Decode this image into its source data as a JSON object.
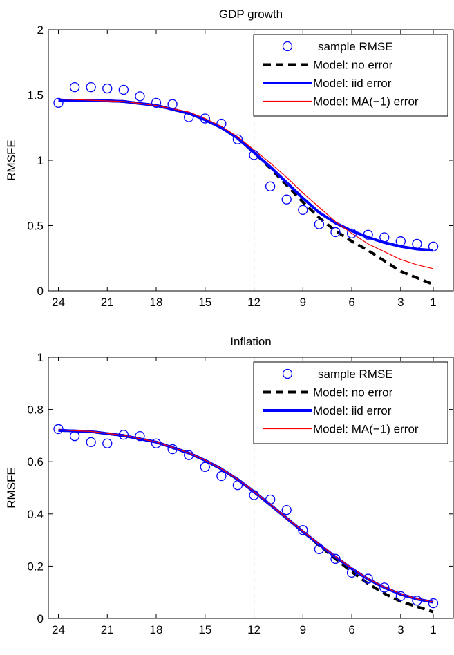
{
  "chart_data": [
    {
      "type": "line",
      "title": "GDP growth",
      "xlabel": "",
      "ylabel": "RMSFE",
      "xlim": [
        24,
        1
      ],
      "ylim": [
        0,
        2
      ],
      "x_reversed": true,
      "x_ticks": [
        24,
        21,
        18,
        15,
        12,
        9,
        6,
        3,
        1
      ],
      "y_ticks": [
        0,
        0.5,
        1,
        1.5,
        2
      ],
      "y_tick_labels": [
        "0",
        "0.5",
        "1",
        "1.5",
        "2"
      ],
      "vline_x": 12,
      "legend_position": "top-right",
      "series": [
        {
          "name": "sample RMSE",
          "kind": "markers",
          "color": "#0000ff",
          "x": [
            24,
            23,
            22,
            21,
            20,
            19,
            18,
            17,
            16,
            15,
            14,
            13,
            12,
            11,
            10,
            9,
            8,
            7,
            6,
            5,
            4,
            3,
            2,
            1
          ],
          "values": [
            1.44,
            1.56,
            1.56,
            1.55,
            1.54,
            1.49,
            1.44,
            1.43,
            1.33,
            1.32,
            1.28,
            1.16,
            1.04,
            0.8,
            0.7,
            0.62,
            0.51,
            0.45,
            0.44,
            0.43,
            0.41,
            0.38,
            0.36,
            0.34
          ]
        },
        {
          "name": "Model: no error",
          "kind": "dashed",
          "color": "#000000",
          "x": [
            24,
            22,
            20,
            18,
            16,
            15,
            14,
            13,
            12,
            11,
            10,
            9,
            8,
            7,
            6,
            5,
            4,
            3,
            2,
            1
          ],
          "values": [
            1.46,
            1.46,
            1.45,
            1.42,
            1.36,
            1.31,
            1.25,
            1.17,
            1.06,
            0.94,
            0.81,
            0.68,
            0.56,
            0.46,
            0.38,
            0.31,
            0.23,
            0.15,
            0.1,
            0.05
          ]
        },
        {
          "name": "Model: iid error",
          "kind": "thick",
          "color": "#0000ff",
          "x": [
            24,
            22,
            20,
            18,
            16,
            15,
            14,
            13,
            12,
            11,
            10,
            9,
            8,
            7,
            6,
            5,
            4,
            3,
            2,
            1
          ],
          "values": [
            1.46,
            1.46,
            1.45,
            1.42,
            1.36,
            1.31,
            1.25,
            1.17,
            1.06,
            0.95,
            0.83,
            0.71,
            0.6,
            0.52,
            0.46,
            0.41,
            0.37,
            0.34,
            0.32,
            0.31
          ]
        },
        {
          "name": "Model: MA(−1) error",
          "kind": "thin",
          "color": "#ff0000",
          "x": [
            24,
            22,
            20,
            18,
            16,
            15,
            14,
            13,
            12,
            11,
            10,
            9,
            8,
            7,
            6,
            5,
            4,
            3,
            2,
            1
          ],
          "values": [
            1.47,
            1.46,
            1.45,
            1.42,
            1.37,
            1.32,
            1.26,
            1.18,
            1.08,
            0.98,
            0.87,
            0.75,
            0.64,
            0.53,
            0.44,
            0.36,
            0.3,
            0.24,
            0.2,
            0.17
          ]
        }
      ]
    },
    {
      "type": "line",
      "title": "Inflation",
      "xlabel": "",
      "ylabel": "RMSFE",
      "xlim": [
        24,
        1
      ],
      "ylim": [
        0,
        1
      ],
      "x_reversed": true,
      "x_ticks": [
        24,
        21,
        18,
        15,
        12,
        9,
        6,
        3,
        1
      ],
      "y_ticks": [
        0,
        0.2,
        0.4,
        0.6,
        0.8,
        1
      ],
      "y_tick_labels": [
        "0",
        "0.2",
        "0.4",
        "0.6",
        "0.8",
        "1"
      ],
      "vline_x": 12,
      "legend_position": "top-right",
      "series": [
        {
          "name": "sample RMSE",
          "kind": "markers",
          "color": "#0000ff",
          "x": [
            24,
            23,
            22,
            21,
            20,
            19,
            18,
            17,
            16,
            15,
            14,
            13,
            12,
            11,
            10,
            9,
            8,
            7,
            6,
            5,
            4,
            3,
            2,
            1
          ],
          "values": [
            0.725,
            0.698,
            0.675,
            0.67,
            0.703,
            0.698,
            0.67,
            0.648,
            0.625,
            0.58,
            0.545,
            0.51,
            0.472,
            0.455,
            0.415,
            0.338,
            0.265,
            0.228,
            0.175,
            0.152,
            0.118,
            0.085,
            0.068,
            0.058
          ]
        },
        {
          "name": "Model: no error",
          "kind": "dashed",
          "color": "#000000",
          "x": [
            24,
            22,
            20,
            18,
            16,
            15,
            14,
            13,
            12,
            11,
            10,
            9,
            8,
            7,
            6,
            5,
            4,
            3,
            2,
            1
          ],
          "values": [
            0.72,
            0.715,
            0.7,
            0.675,
            0.633,
            0.605,
            0.572,
            0.532,
            0.485,
            0.435,
            0.384,
            0.332,
            0.28,
            0.228,
            0.178,
            0.133,
            0.095,
            0.065,
            0.045,
            0.025
          ]
        },
        {
          "name": "Model: iid error",
          "kind": "thick",
          "color": "#0000ff",
          "x": [
            24,
            22,
            20,
            18,
            16,
            15,
            14,
            13,
            12,
            11,
            10,
            9,
            8,
            7,
            6,
            5,
            4,
            3,
            2,
            1
          ],
          "values": [
            0.72,
            0.715,
            0.7,
            0.675,
            0.633,
            0.605,
            0.572,
            0.532,
            0.485,
            0.435,
            0.384,
            0.332,
            0.283,
            0.235,
            0.19,
            0.15,
            0.118,
            0.092,
            0.074,
            0.062
          ]
        },
        {
          "name": "Model: MA(−1) error",
          "kind": "thin",
          "color": "#ff0000",
          "x": [
            24,
            22,
            20,
            18,
            16,
            15,
            14,
            13,
            12,
            11,
            10,
            9,
            8,
            7,
            6,
            5,
            4,
            3,
            2,
            1
          ],
          "values": [
            0.722,
            0.716,
            0.701,
            0.676,
            0.634,
            0.606,
            0.573,
            0.533,
            0.486,
            0.436,
            0.385,
            0.334,
            0.285,
            0.237,
            0.192,
            0.152,
            0.12,
            0.094,
            0.075,
            0.063
          ]
        }
      ]
    }
  ]
}
